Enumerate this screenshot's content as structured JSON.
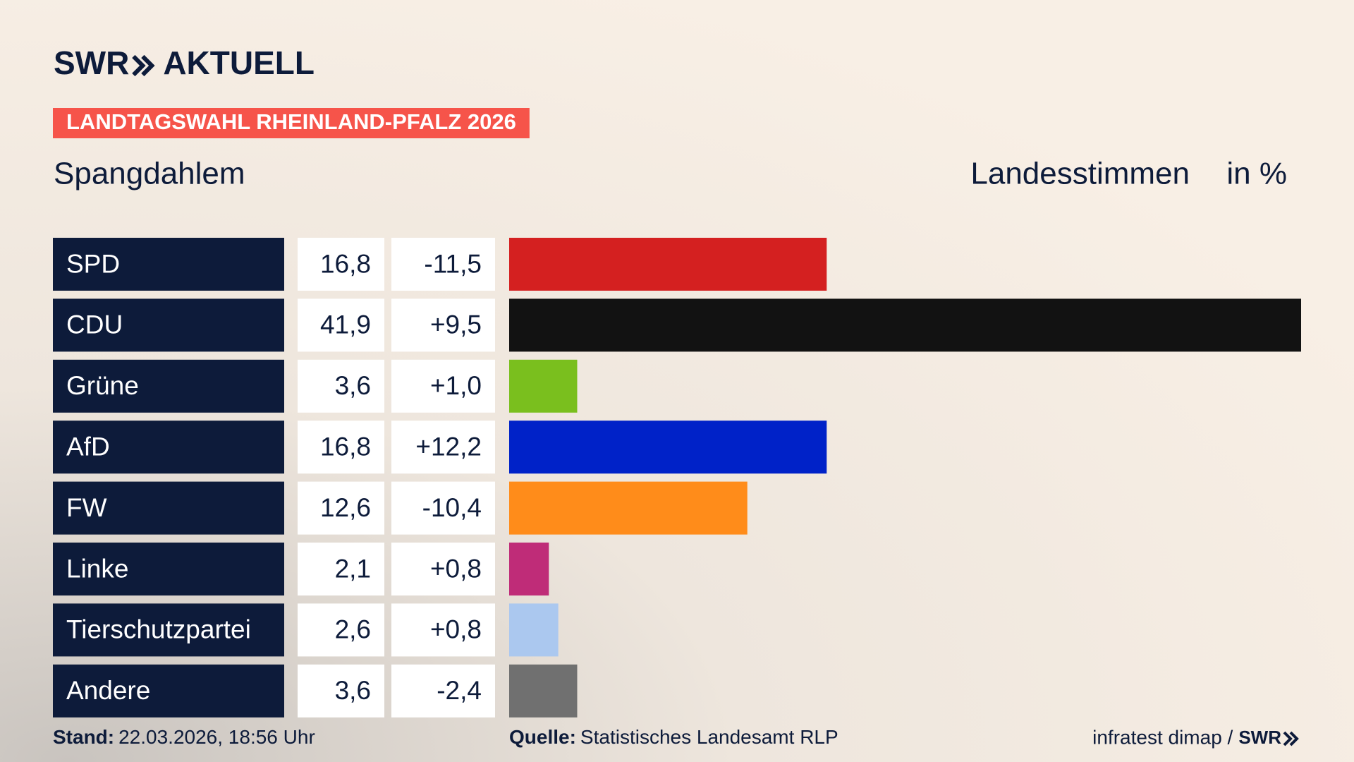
{
  "chart_data": {
    "type": "bar",
    "brand": "SWR",
    "product": "AKTUELL",
    "kicker": "LANDTAGSWAHL RHEINLAND-PFALZ 2026",
    "title": "Spangdahlem",
    "measure": "Landesstimmen",
    "unit": "in %",
    "categories": [
      "SPD",
      "CDU",
      "Grüne",
      "AfD",
      "FW",
      "Linke",
      "Tierschutzpartei",
      "Andere"
    ],
    "values": [
      16.8,
      41.9,
      3.6,
      16.8,
      12.6,
      2.1,
      2.6,
      3.6
    ],
    "value_labels": [
      "16,8",
      "41,9",
      "3,6",
      "16,8",
      "12,6",
      "2,1",
      "2,6",
      "3,6"
    ],
    "colors": [
      "#d42020",
      "#121212",
      "#7abf1e",
      "#0022c8",
      "#ff8c1a",
      "#bf2c78",
      "#abc8ef",
      "#707070"
    ],
    "changes": [
      -11.5,
      9.5,
      1.0,
      12.2,
      -10.4,
      0.8,
      0.8,
      -2.4
    ],
    "change_labels": [
      "-11,5",
      "+9,5",
      "+1,0",
      "+12,2",
      "-10,4",
      "+0,8",
      "+0,8",
      "-2,4"
    ],
    "stand_label": "Stand:",
    "stand": "22.03.2026, 18:56 Uhr",
    "source_label": "Quelle:",
    "source": "Statistisches Landesamt RLP",
    "credit": "infratest dimap /",
    "credit_brand": "SWR"
  }
}
